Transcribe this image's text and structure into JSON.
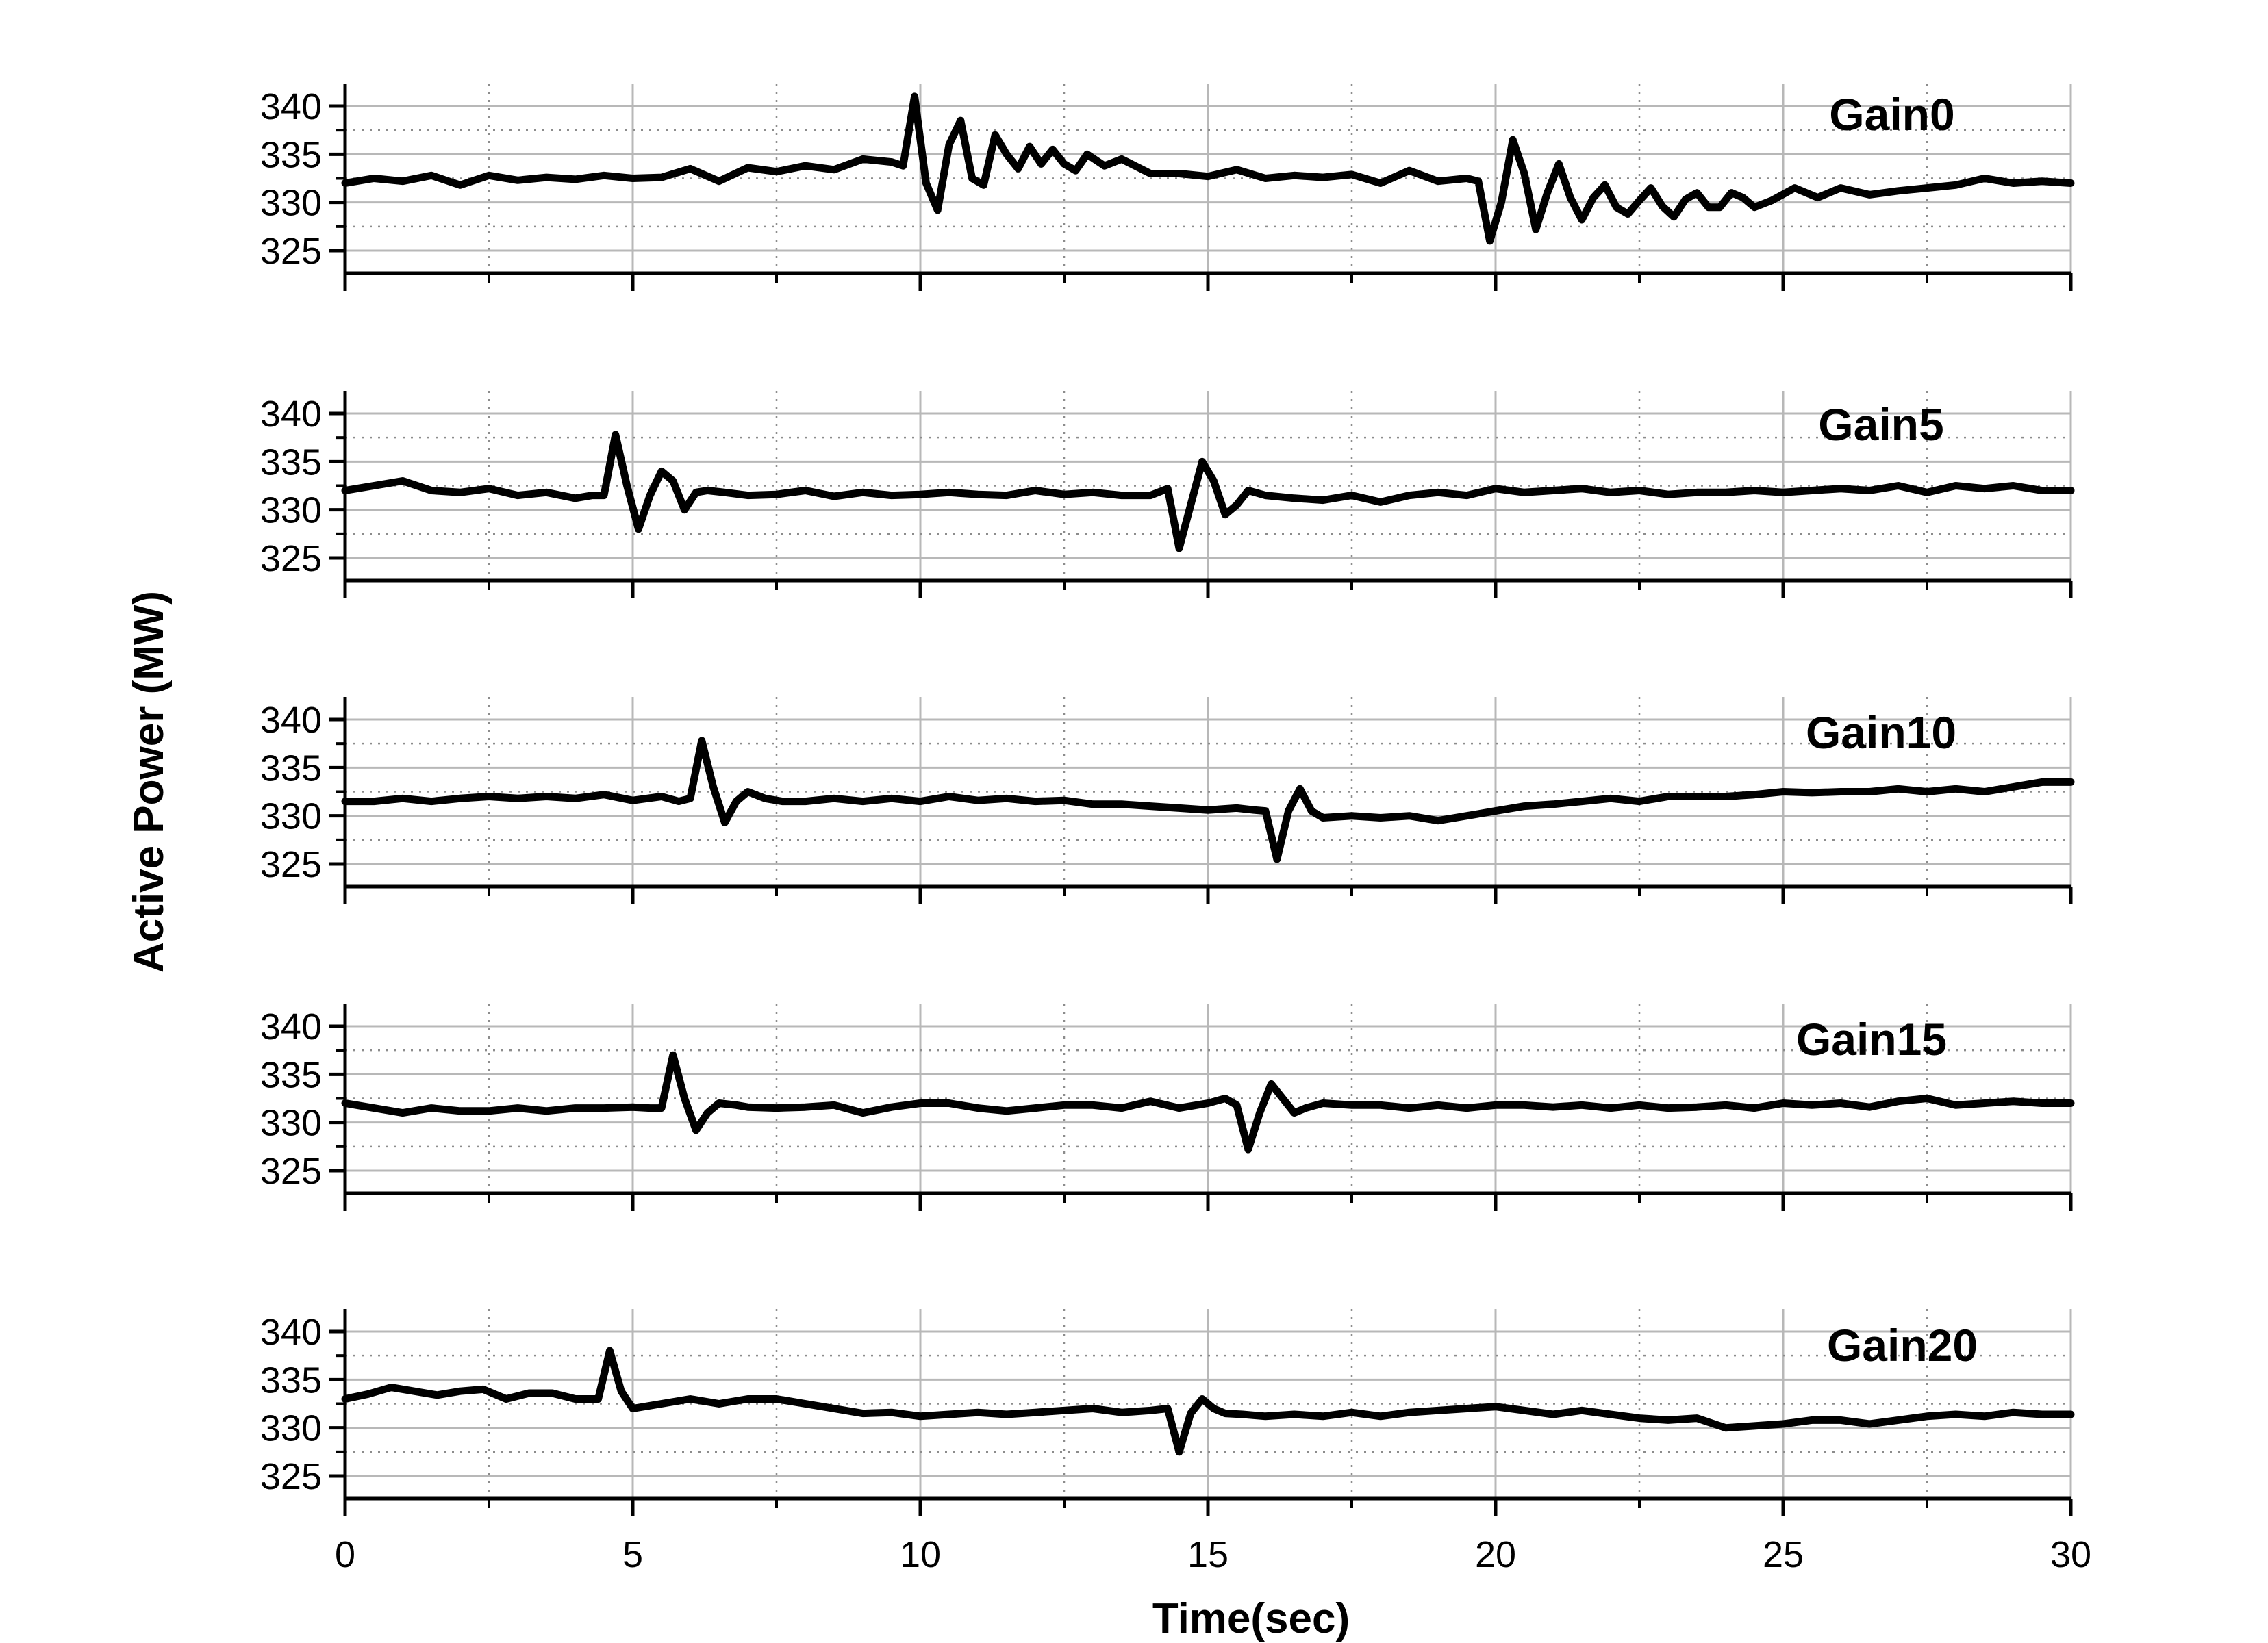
{
  "chart_data": {
    "type": "line",
    "xlabel": "Time(sec)",
    "ylabel": "Active Power (MW)",
    "xlim": [
      0,
      30
    ],
    "x_ticks": [
      "0",
      "5",
      "10",
      "15",
      "20",
      "25",
      "30"
    ],
    "ylim": [
      325,
      340
    ],
    "y_ticks": [
      "340",
      "335",
      "330",
      "325"
    ],
    "grid": true,
    "line_color": "#000000",
    "panels": [
      {
        "label": "Gain0",
        "x": [
          0,
          0.5,
          1,
          1.5,
          2,
          2.5,
          3,
          3.5,
          4,
          4.5,
          5,
          5.5,
          6,
          6.5,
          7,
          7.5,
          8,
          8.5,
          9,
          9.5,
          9.7,
          9.9,
          10.1,
          10.3,
          10.5,
          10.7,
          10.9,
          11.1,
          11.3,
          11.5,
          11.7,
          11.9,
          12.1,
          12.3,
          12.5,
          12.7,
          12.9,
          13.2,
          13.5,
          14,
          14.5,
          15,
          15.5,
          16,
          16.5,
          17,
          17.5,
          18,
          18.5,
          19,
          19.5,
          19.7,
          19.9,
          20.1,
          20.3,
          20.5,
          20.7,
          20.9,
          21.1,
          21.3,
          21.5,
          21.7,
          21.9,
          22.1,
          22.3,
          22.5,
          22.7,
          22.9,
          23.1,
          23.3,
          23.5,
          23.7,
          23.9,
          24.1,
          24.3,
          24.5,
          24.8,
          25.2,
          25.6,
          26,
          26.5,
          27,
          27.5,
          28,
          28.5,
          29,
          29.5,
          30
        ],
        "y": [
          332,
          332.5,
          332.2,
          332.8,
          331.8,
          332.8,
          332.3,
          332.6,
          332.4,
          332.8,
          332.5,
          332.6,
          333.5,
          332.2,
          333.6,
          333.2,
          333.8,
          333.4,
          334.5,
          334.2,
          333.8,
          341,
          332,
          329.2,
          336,
          338.5,
          332.5,
          331.8,
          337,
          335,
          333.5,
          335.8,
          334,
          335.5,
          334,
          333.3,
          335,
          333.8,
          334.5,
          333,
          333,
          332.7,
          333.4,
          332.5,
          332.8,
          332.6,
          332.9,
          332,
          333.3,
          332.2,
          332.5,
          332.2,
          326,
          330,
          336.5,
          333,
          327.2,
          331,
          334,
          330.5,
          328.2,
          330.5,
          331.8,
          329.5,
          328.8,
          330.2,
          331.5,
          329.6,
          328.5,
          330.3,
          331,
          329.5,
          329.5,
          331,
          330.5,
          329.5,
          330.2,
          331.5,
          330.5,
          331.5,
          330.8,
          331.2,
          331.5,
          331.8,
          332.5,
          332,
          332.2,
          332
        ]
      },
      {
        "label": "Gain5",
        "x": [
          0,
          0.5,
          1,
          1.5,
          2,
          2.5,
          3,
          3.5,
          4,
          4.3,
          4.5,
          4.7,
          4.9,
          5.1,
          5.3,
          5.5,
          5.7,
          5.9,
          6.1,
          6.3,
          6.6,
          7,
          7.5,
          8,
          8.5,
          9,
          9.5,
          10,
          10.5,
          11,
          11.5,
          12,
          12.5,
          13,
          13.5,
          14,
          14.3,
          14.5,
          14.7,
          14.9,
          15.1,
          15.3,
          15.5,
          15.7,
          16,
          16.5,
          17,
          17.5,
          18,
          18.5,
          19,
          19.5,
          20,
          20.5,
          21,
          21.5,
          22,
          22.5,
          23,
          23.5,
          24,
          24.5,
          25,
          25.5,
          26,
          26.5,
          27,
          27.5,
          28,
          28.5,
          29,
          29.5,
          30
        ],
        "y": [
          332,
          332.5,
          333,
          332,
          331.8,
          332.2,
          331.5,
          331.8,
          331.2,
          331.5,
          331.5,
          337.8,
          332.5,
          328,
          331.5,
          334,
          333,
          330,
          331.8,
          332,
          331.8,
          331.5,
          331.6,
          332,
          331.4,
          331.8,
          331.5,
          331.6,
          331.8,
          331.6,
          331.5,
          332,
          331.6,
          331.8,
          331.5,
          331.5,
          332.2,
          326,
          330.5,
          335,
          333,
          329.5,
          330.5,
          332,
          331.5,
          331.2,
          331,
          331.5,
          330.8,
          331.5,
          331.8,
          331.5,
          332.2,
          331.8,
          332,
          332.2,
          331.8,
          332,
          331.6,
          331.8,
          331.8,
          332,
          331.8,
          332,
          332.2,
          332,
          332.5,
          331.8,
          332.5,
          332.2,
          332.5,
          332,
          332
        ]
      },
      {
        "label": "Gain10",
        "x": [
          0,
          0.5,
          1,
          1.5,
          2,
          2.5,
          3,
          3.5,
          4,
          4.5,
          5,
          5.5,
          5.8,
          6,
          6.2,
          6.4,
          6.6,
          6.8,
          7,
          7.3,
          7.6,
          8,
          8.5,
          9,
          9.5,
          10,
          10.5,
          11,
          11.5,
          12,
          12.5,
          13,
          13.5,
          14,
          14.5,
          15,
          15.5,
          15.8,
          16,
          16.2,
          16.4,
          16.6,
          16.8,
          17,
          17.5,
          18,
          18.5,
          19,
          19.5,
          20,
          20.5,
          21,
          21.5,
          22,
          22.5,
          23,
          23.5,
          24,
          24.5,
          25,
          25.5,
          26,
          26.5,
          27,
          27.5,
          28,
          28.5,
          29,
          29.5,
          30
        ],
        "y": [
          331.5,
          331.5,
          331.8,
          331.5,
          331.8,
          332,
          331.8,
          332,
          331.8,
          332.2,
          331.6,
          332,
          331.5,
          331.8,
          337.8,
          333,
          329.3,
          331.5,
          332.5,
          331.8,
          331.5,
          331.5,
          331.8,
          331.5,
          331.8,
          331.5,
          332,
          331.6,
          331.8,
          331.5,
          331.6,
          331.2,
          331.2,
          331,
          330.8,
          330.6,
          330.8,
          330.6,
          330.5,
          325.5,
          330.5,
          332.8,
          330.5,
          329.8,
          330,
          329.8,
          330,
          329.5,
          330,
          330.5,
          331,
          331.2,
          331.5,
          331.8,
          331.5,
          332,
          332,
          332,
          332.2,
          332.5,
          332.4,
          332.5,
          332.5,
          332.8,
          332.5,
          332.8,
          332.5,
          333,
          333.5,
          333.5
        ]
      },
      {
        "label": "Gain15",
        "x": [
          0,
          0.5,
          1,
          1.5,
          2,
          2.5,
          3,
          3.5,
          4,
          4.5,
          5,
          5.3,
          5.5,
          5.7,
          5.9,
          6.1,
          6.3,
          6.5,
          6.8,
          7,
          7.5,
          8,
          8.5,
          9,
          9.5,
          10,
          10.5,
          11,
          11.5,
          12,
          12.5,
          13,
          13.5,
          14,
          14.5,
          15,
          15.3,
          15.5,
          15.7,
          15.9,
          16.1,
          16.3,
          16.5,
          16.7,
          17,
          17.5,
          18,
          18.5,
          19,
          19.5,
          20,
          20.5,
          21,
          21.5,
          22,
          22.5,
          23,
          23.5,
          24,
          24.5,
          25,
          25.5,
          26,
          26.5,
          27,
          27.5,
          28,
          28.5,
          29,
          29.5,
          30
        ],
        "y": [
          332,
          331.5,
          331,
          331.5,
          331.2,
          331.2,
          331.5,
          331.2,
          331.5,
          331.5,
          331.6,
          331.5,
          331.5,
          337,
          332.5,
          329.2,
          331,
          332,
          331.8,
          331.6,
          331.5,
          331.6,
          331.8,
          331,
          331.6,
          332,
          332,
          331.5,
          331.2,
          331.5,
          331.8,
          331.8,
          331.5,
          332.2,
          331.5,
          332,
          332.5,
          331.8,
          327.2,
          331,
          334,
          332.5,
          331,
          331.5,
          332,
          331.8,
          331.8,
          331.5,
          331.8,
          331.5,
          331.8,
          331.8,
          331.6,
          331.8,
          331.5,
          331.8,
          331.5,
          331.6,
          331.8,
          331.5,
          332,
          331.8,
          332,
          331.6,
          332.2,
          332.5,
          331.8,
          332,
          332.2,
          332,
          332
        ]
      },
      {
        "label": "Gain20",
        "x": [
          0,
          0.4,
          0.8,
          1.2,
          1.6,
          2,
          2.4,
          2.8,
          3.2,
          3.6,
          4,
          4.2,
          4.4,
          4.6,
          4.8,
          5,
          5.5,
          6,
          6.5,
          7,
          7.5,
          8,
          8.5,
          9,
          9.5,
          10,
          10.5,
          11,
          11.5,
          12,
          12.5,
          13,
          13.5,
          14,
          14.3,
          14.5,
          14.7,
          14.9,
          15.1,
          15.3,
          15.6,
          16,
          16.5,
          17,
          17.5,
          18,
          18.5,
          19,
          19.5,
          20,
          20.5,
          21,
          21.5,
          22,
          22.5,
          23,
          23.5,
          24,
          24.5,
          25,
          25.5,
          26,
          26.5,
          27,
          27.5,
          28,
          28.5,
          29,
          29.5,
          30
        ],
        "y": [
          333,
          333.5,
          334.2,
          333.8,
          333.4,
          333.8,
          334,
          333,
          333.6,
          333.6,
          333,
          333,
          333,
          338,
          333.8,
          332,
          332.5,
          333,
          332.5,
          333,
          333,
          332.5,
          332,
          331.5,
          331.6,
          331.2,
          331.4,
          331.6,
          331.4,
          331.6,
          331.8,
          332,
          331.6,
          331.8,
          332,
          327.5,
          331.5,
          333,
          332,
          331.5,
          331.4,
          331.2,
          331.4,
          331.2,
          331.6,
          331.2,
          331.6,
          331.8,
          332,
          332.2,
          331.8,
          331.4,
          331.8,
          331.4,
          331,
          330.8,
          331,
          330,
          330.2,
          330.4,
          330.8,
          330.8,
          330.4,
          330.8,
          331.2,
          331.4,
          331.2,
          331.6,
          331.4,
          331.4
        ]
      }
    ]
  }
}
